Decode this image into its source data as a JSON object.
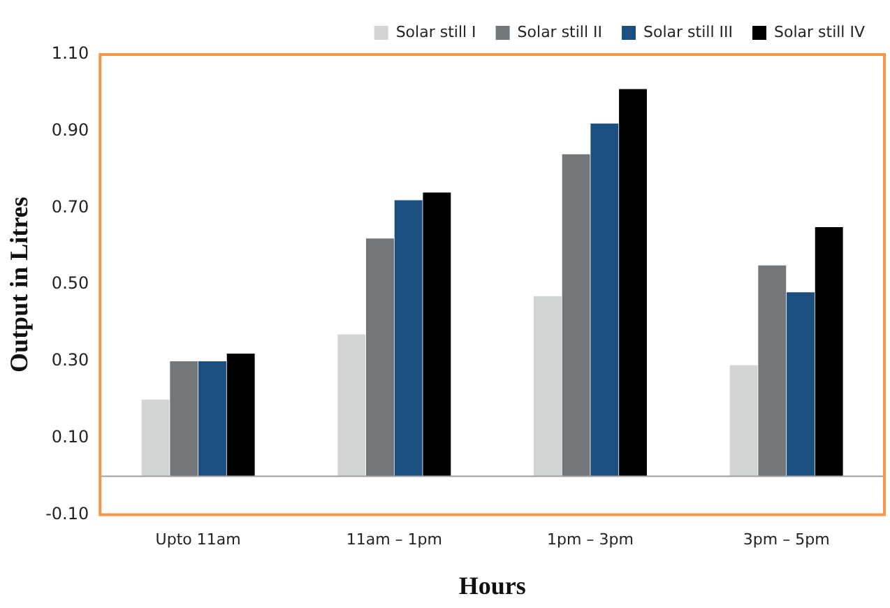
{
  "chart_data": {
    "type": "bar",
    "xlabel": "Hours",
    "ylabel": "Output in Litres",
    "categories": [
      "Upto 11am",
      "11am – 1pm",
      "1pm – 3pm",
      "3pm – 5pm"
    ],
    "series": [
      {
        "name": "Solar still I",
        "color": "#d3d5d4",
        "values": [
          0.2,
          0.37,
          0.47,
          0.29
        ]
      },
      {
        "name": "Solar still II",
        "color": "#74777a",
        "values": [
          0.3,
          0.62,
          0.84,
          0.55
        ]
      },
      {
        "name": "Solar still III",
        "color": "#1a4f80",
        "values": [
          0.3,
          0.72,
          0.92,
          0.48
        ]
      },
      {
        "name": "Solar still IV",
        "color": "#000000",
        "values": [
          0.32,
          0.74,
          1.01,
          0.65
        ]
      }
    ],
    "ylim": [
      -0.1,
      1.1
    ],
    "yticks": [
      {
        "value": -0.1,
        "label": "-0.10"
      },
      {
        "value": 0.1,
        "label": "0.10"
      },
      {
        "value": 0.3,
        "label": "0.30"
      },
      {
        "value": 0.5,
        "label": "0.50"
      },
      {
        "value": 0.7,
        "label": "0.70"
      },
      {
        "value": 0.9,
        "label": "0.90"
      },
      {
        "value": 1.1,
        "label": "1.10"
      }
    ],
    "grid": false,
    "legend": "top"
  }
}
